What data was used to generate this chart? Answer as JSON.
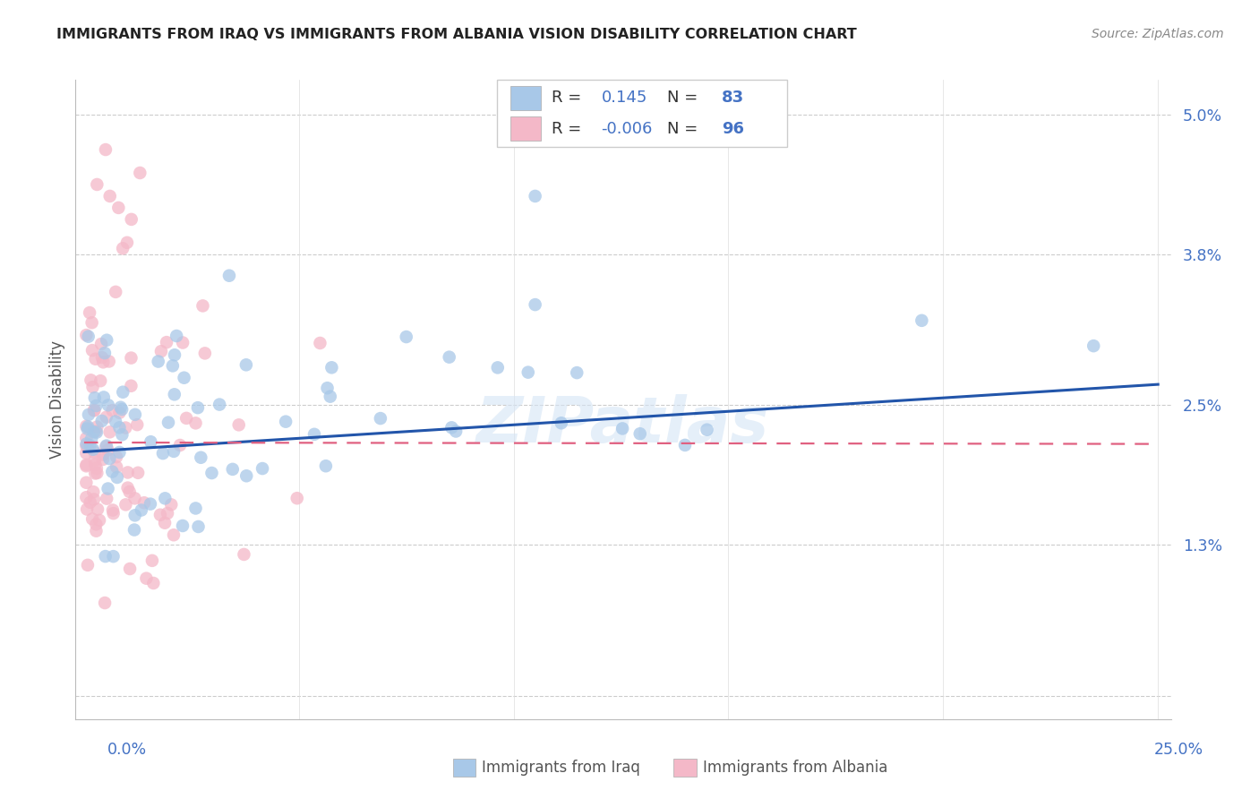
{
  "title": "IMMIGRANTS FROM IRAQ VS IMMIGRANTS FROM ALBANIA VISION DISABILITY CORRELATION CHART",
  "source": "Source: ZipAtlas.com",
  "ylabel": "Vision Disability",
  "ytick_values": [
    0.0,
    1.3,
    2.5,
    3.8,
    5.0
  ],
  "ytick_labels": [
    "",
    "1.3%",
    "2.5%",
    "3.8%",
    "5.0%"
  ],
  "xlim": [
    0.0,
    25.0
  ],
  "ylim": [
    0.0,
    5.0
  ],
  "iraq_R": 0.145,
  "iraq_N": 83,
  "albania_R": -0.006,
  "albania_N": 96,
  "iraq_color": "#a8c8e8",
  "albania_color": "#f4b8c8",
  "iraq_line_color": "#2255aa",
  "albania_line_color": "#e06080",
  "watermark": "ZIPatlas",
  "legend_iraq_label": "Immigrants from Iraq",
  "legend_albania_label": "Immigrants from Albania"
}
